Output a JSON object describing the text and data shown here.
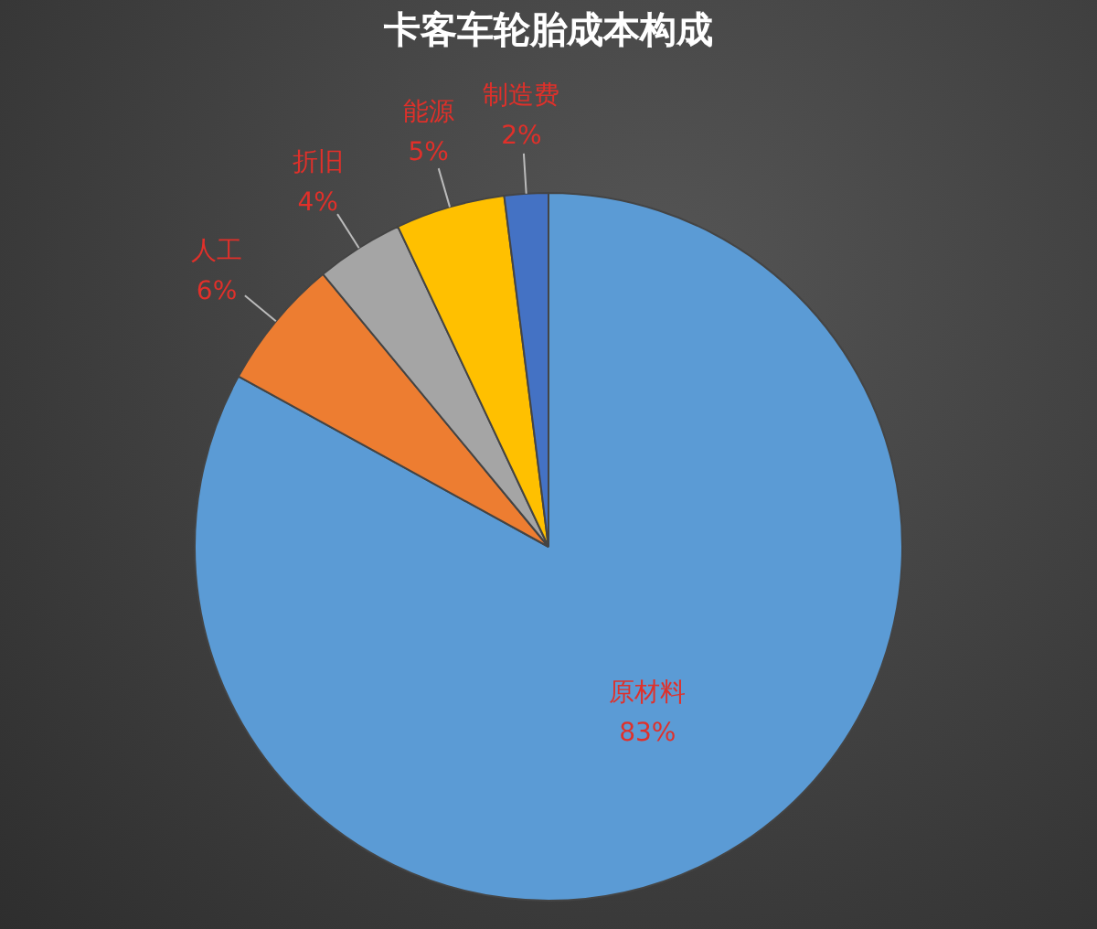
{
  "chart_data": {
    "type": "pie",
    "title": "卡客车轮胎成本构成",
    "categories": [
      "原材料",
      "人工",
      "折旧",
      "能源",
      "制造费"
    ],
    "values": [
      83,
      6,
      4,
      5,
      2
    ],
    "colors": [
      "#5b9bd5",
      "#ed7d31",
      "#a5a5a5",
      "#ffc000",
      "#4472c4"
    ],
    "value_labels": [
      "83%",
      "6%",
      "4%",
      "5%",
      "2%"
    ],
    "legend": false
  }
}
